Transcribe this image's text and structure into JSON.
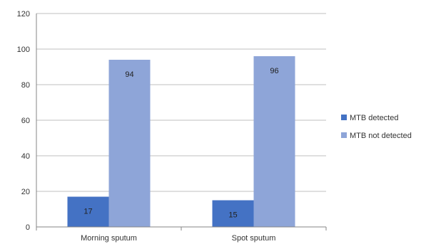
{
  "chart_data": {
    "type": "bar",
    "categories": [
      "Morning sputum",
      "Spot sputum"
    ],
    "series": [
      {
        "name": "MTB detected",
        "values": [
          17,
          15
        ],
        "color": "#4472C4"
      },
      {
        "name": "MTB not detected",
        "values": [
          94,
          96
        ],
        "color": "#8EA5D8"
      }
    ],
    "y_ticks": [
      "0",
      "20",
      "40",
      "60",
      "80",
      "100",
      "120"
    ],
    "ylim": [
      0,
      120
    ],
    "grid": true,
    "legend_position": "right",
    "data_labels": true
  }
}
